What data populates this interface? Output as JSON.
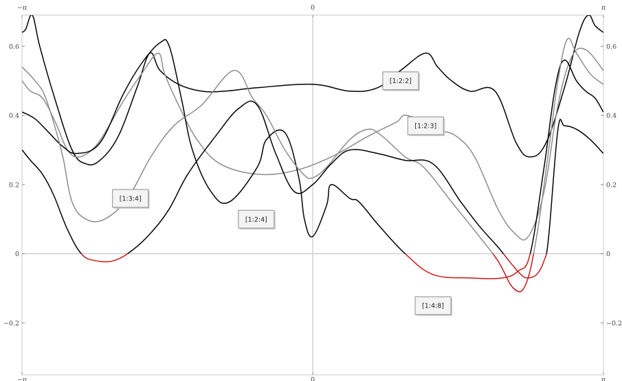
{
  "chart_data": {
    "type": "line",
    "xlim": [
      "-π",
      "π"
    ],
    "ylim": [
      -0.35,
      0.69
    ],
    "grid": "axes-cross",
    "x_ticks": [
      {
        "value": -3.14159,
        "label": "−π"
      },
      {
        "value": 0,
        "label": "0"
      },
      {
        "value": 3.14159,
        "label": "π"
      }
    ],
    "y_ticks": [
      {
        "value": -0.2,
        "label": "−0.2"
      },
      {
        "value": 0,
        "label": "0"
      },
      {
        "value": 0.2,
        "label": "0.2"
      },
      {
        "value": 0.4,
        "label": "0.4"
      },
      {
        "value": 0.6,
        "label": "0.6"
      }
    ],
    "negative_color": "#cc1414",
    "series": [
      {
        "name": "[1:2:2]",
        "color": "#000000",
        "points": [
          [
            -3.14,
            0.64
          ],
          [
            -3.1,
            0.65
          ],
          [
            -3.03,
            0.69
          ],
          [
            -2.95,
            0.6
          ],
          [
            -2.8,
            0.46
          ],
          [
            -2.6,
            0.3
          ],
          [
            -2.45,
            0.26
          ],
          [
            -2.3,
            0.27
          ],
          [
            -2.1,
            0.34
          ],
          [
            -1.9,
            0.48
          ],
          [
            -1.76,
            0.58
          ],
          [
            -1.65,
            0.53
          ],
          [
            -1.45,
            0.49
          ],
          [
            -1.2,
            0.47
          ],
          [
            -0.95,
            0.47
          ],
          [
            -0.6,
            0.48
          ],
          [
            0,
            0.49
          ],
          [
            0.4,
            0.47
          ],
          [
            0.7,
            0.48
          ],
          [
            0.95,
            0.53
          ],
          [
            1.22,
            0.58
          ],
          [
            1.35,
            0.54
          ],
          [
            1.5,
            0.5
          ],
          [
            1.7,
            0.47
          ],
          [
            1.97,
            0.47
          ],
          [
            2.2,
            0.32
          ],
          [
            2.35,
            0.28
          ],
          [
            2.52,
            0.32
          ],
          [
            2.72,
            0.48
          ],
          [
            2.88,
            0.64
          ],
          [
            2.98,
            0.69
          ],
          [
            3.05,
            0.66
          ],
          [
            3.14,
            0.64
          ]
        ],
        "label_pos": [
          0.95,
          0.5
        ]
      },
      {
        "name": "[1:2:3]",
        "color": "#8c8c8c",
        "points": [
          [
            -3.14,
            0.5
          ],
          [
            -3.05,
            0.47
          ],
          [
            -2.92,
            0.45
          ],
          [
            -2.78,
            0.38
          ],
          [
            -2.65,
            0.3
          ],
          [
            -2.52,
            0.28
          ],
          [
            -2.35,
            0.31
          ],
          [
            -2.2,
            0.37
          ],
          [
            -2.05,
            0.44
          ],
          [
            -1.85,
            0.52
          ],
          [
            -1.67,
            0.58
          ],
          [
            -1.6,
            0.52
          ],
          [
            -1.45,
            0.43
          ],
          [
            -1.25,
            0.33
          ],
          [
            -1,
            0.26
          ],
          [
            -0.6,
            0.23
          ],
          [
            -0.2,
            0.24
          ],
          [
            0.2,
            0.28
          ],
          [
            0.6,
            0.34
          ],
          [
            0.9,
            0.38
          ],
          [
            1.02,
            0.4
          ],
          [
            1.35,
            0.36
          ],
          [
            1.55,
            0.34
          ],
          [
            1.75,
            0.28
          ],
          [
            2.0,
            0.13
          ],
          [
            2.18,
            0.06
          ],
          [
            2.33,
            0.05
          ],
          [
            2.5,
            0.18
          ],
          [
            2.65,
            0.43
          ],
          [
            2.8,
            0.57
          ],
          [
            2.95,
            0.59
          ],
          [
            3.14,
            0.53
          ]
        ],
        "label_pos": [
          1.22,
          0.37
        ]
      },
      {
        "name": "[1:2:4]",
        "color": "#000000",
        "points": [
          [
            -3.14,
            0.41
          ],
          [
            -3.0,
            0.39
          ],
          [
            -2.85,
            0.35
          ],
          [
            -2.7,
            0.31
          ],
          [
            -2.55,
            0.29
          ],
          [
            -2.3,
            0.32
          ],
          [
            -2.05,
            0.46
          ],
          [
            -1.85,
            0.55
          ],
          [
            -1.65,
            0.61
          ],
          [
            -1.55,
            0.6
          ],
          [
            -1.42,
            0.45
          ],
          [
            -1.3,
            0.3
          ],
          [
            -1.1,
            0.18
          ],
          [
            -0.9,
            0.15
          ],
          [
            -0.6,
            0.25
          ],
          [
            -0.5,
            0.33
          ],
          [
            -0.3,
            0.35
          ],
          [
            -0.15,
            0.22
          ],
          [
            -0.09,
            0.1
          ],
          [
            0,
            0.05
          ],
          [
            0.15,
            0.14
          ],
          [
            0.2,
            0.2
          ],
          [
            0.4,
            0.16
          ],
          [
            0.5,
            0.15
          ],
          [
            0.72,
            0.08
          ],
          [
            1.0,
            0.0
          ],
          [
            1.3,
            -0.06
          ],
          [
            1.7,
            -0.07
          ],
          [
            2.05,
            -0.07
          ],
          [
            2.22,
            -0.05
          ],
          [
            2.35,
            0.0
          ],
          [
            2.5,
            0.25
          ],
          [
            2.62,
            0.48
          ],
          [
            2.72,
            0.56
          ],
          [
            2.85,
            0.5
          ],
          [
            2.95,
            0.47
          ],
          [
            3.05,
            0.45
          ],
          [
            3.14,
            0.41
          ]
        ],
        "label_pos": [
          -0.61,
          0.1
        ]
      },
      {
        "name": "[1:3:4]",
        "color": "#8c8c8c",
        "points": [
          [
            -3.14,
            0.54
          ],
          [
            -3.0,
            0.5
          ],
          [
            -2.9,
            0.46
          ],
          [
            -2.8,
            0.38
          ],
          [
            -2.7,
            0.28
          ],
          [
            -2.6,
            0.15
          ],
          [
            -2.45,
            0.1
          ],
          [
            -2.25,
            0.1
          ],
          [
            -2.0,
            0.16
          ],
          [
            -1.75,
            0.28
          ],
          [
            -1.5,
            0.37
          ],
          [
            -1.2,
            0.43
          ],
          [
            -0.85,
            0.53
          ],
          [
            -0.65,
            0.45
          ],
          [
            -0.5,
            0.4
          ],
          [
            -0.3,
            0.3
          ],
          [
            -0.1,
            0.23
          ],
          [
            0,
            0.22
          ],
          [
            0.15,
            0.25
          ],
          [
            0.4,
            0.33
          ],
          [
            0.6,
            0.36
          ],
          [
            0.75,
            0.34
          ],
          [
            1.0,
            0.28
          ],
          [
            1.2,
            0.25
          ],
          [
            1.5,
            0.15
          ],
          [
            1.8,
            0.05
          ],
          [
            2.0,
            -0.02
          ],
          [
            2.17,
            -0.1
          ],
          [
            2.3,
            -0.09
          ],
          [
            2.42,
            0.05
          ],
          [
            2.55,
            0.3
          ],
          [
            2.65,
            0.5
          ],
          [
            2.75,
            0.62
          ],
          [
            2.85,
            0.58
          ],
          [
            3.0,
            0.52
          ],
          [
            3.14,
            0.49
          ]
        ],
        "label_pos": [
          -1.97,
          0.16
        ]
      },
      {
        "name": "[1:4:8]",
        "color": "#000000",
        "points": [
          [
            -3.14,
            0.3
          ],
          [
            -3.05,
            0.27
          ],
          [
            -2.92,
            0.23
          ],
          [
            -2.8,
            0.17
          ],
          [
            -2.65,
            0.07
          ],
          [
            -2.5,
            0.0
          ],
          [
            -2.35,
            -0.02
          ],
          [
            -2.15,
            -0.02
          ],
          [
            -1.95,
            0.01
          ],
          [
            -1.75,
            0.06
          ],
          [
            -1.55,
            0.13
          ],
          [
            -1.35,
            0.23
          ],
          [
            -1.05,
            0.34
          ],
          [
            -0.8,
            0.42
          ],
          [
            -0.6,
            0.43
          ],
          [
            -0.4,
            0.29
          ],
          [
            -0.2,
            0.18
          ],
          [
            0,
            0.2
          ],
          [
            0.2,
            0.26
          ],
          [
            0.4,
            0.3
          ],
          [
            0.7,
            0.29
          ],
          [
            1.0,
            0.27
          ],
          [
            1.3,
            0.26
          ],
          [
            1.6,
            0.15
          ],
          [
            1.8,
            0.08
          ],
          [
            2.0,
            0.02
          ],
          [
            2.15,
            -0.03
          ],
          [
            2.25,
            -0.06
          ],
          [
            2.32,
            -0.07
          ],
          [
            2.42,
            -0.06
          ],
          [
            2.5,
            -0.02
          ],
          [
            2.55,
            0.05
          ],
          [
            2.65,
            0.36
          ],
          [
            2.72,
            0.37
          ],
          [
            2.85,
            0.36
          ],
          [
            3.0,
            0.33
          ],
          [
            3.14,
            0.29
          ]
        ],
        "label_pos": [
          1.3,
          -0.15
        ]
      }
    ]
  }
}
